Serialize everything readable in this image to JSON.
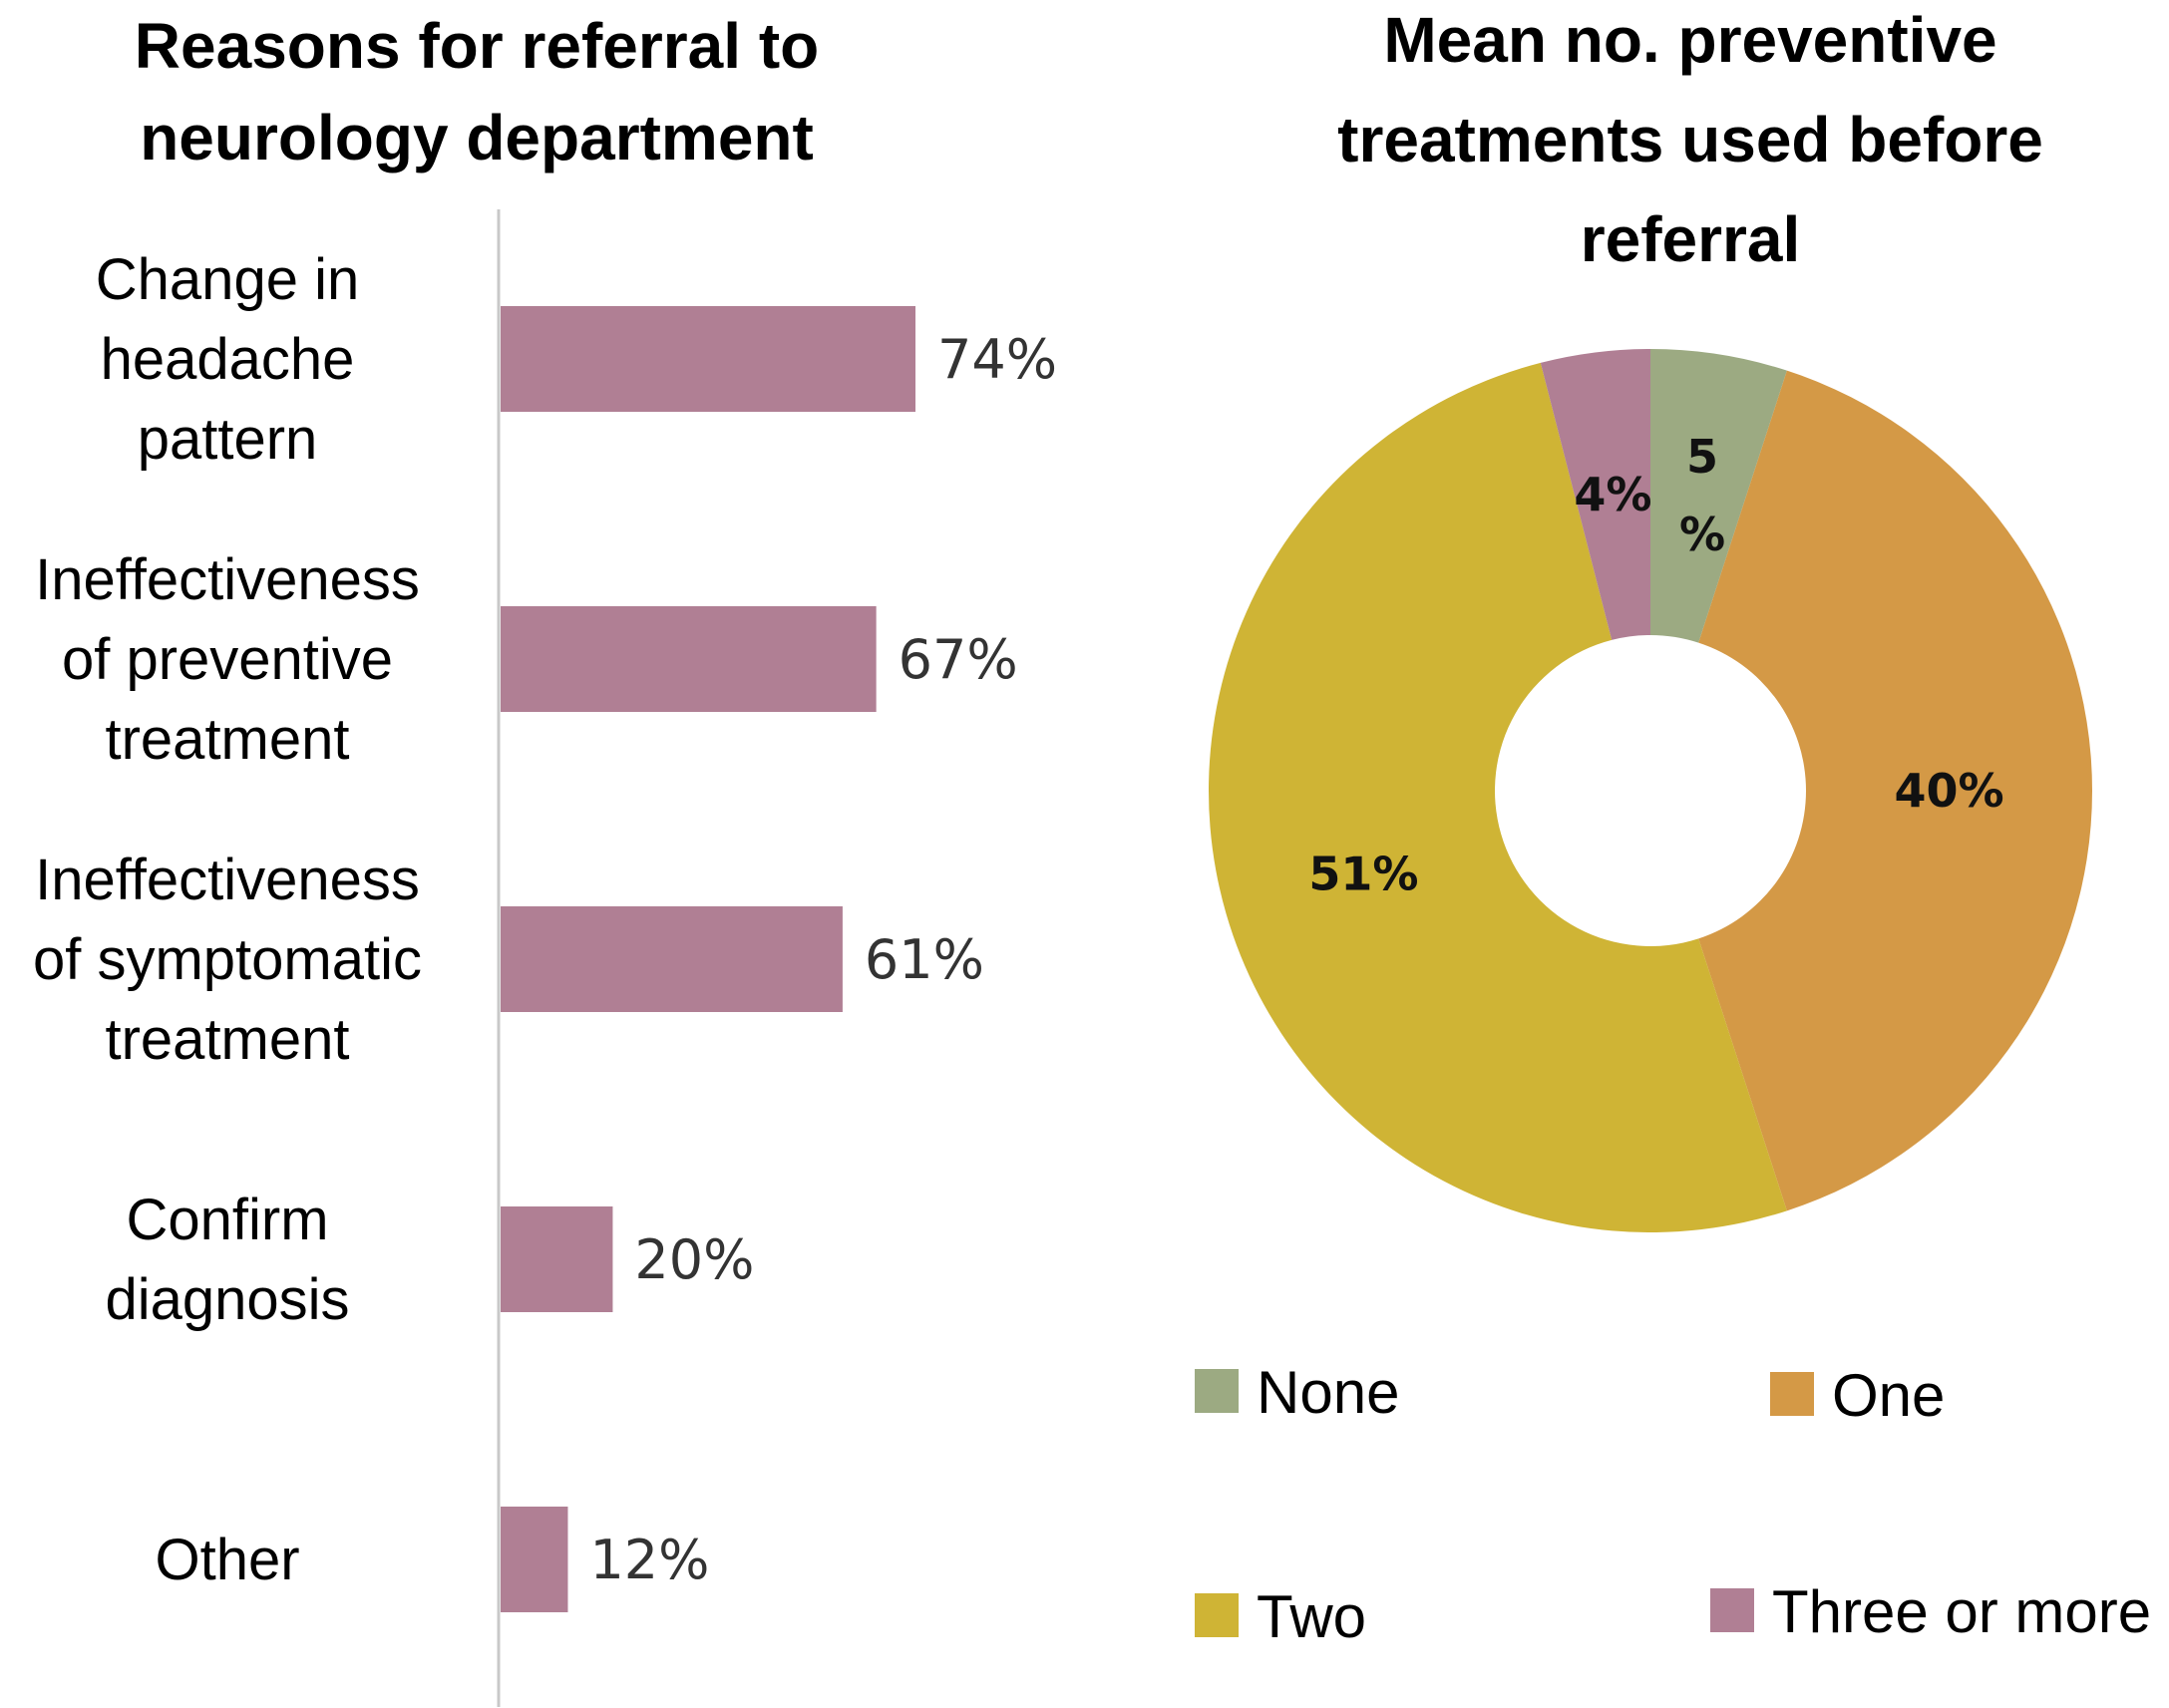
{
  "chart_data": [
    {
      "type": "bar",
      "orientation": "horizontal",
      "title": "Reasons for referral to neurology department",
      "title_lines": [
        "Reasons for referral to",
        "neurology department"
      ],
      "categories": [
        "Change in headache pattern",
        "Ineffectiveness of preventive treatment",
        "Ineffectiveness of symptomatic treatment",
        "Confirm diagnosis",
        "Other"
      ],
      "category_lines": [
        [
          "Change in",
          "headache",
          "pattern"
        ],
        [
          "Ineffectiveness",
          "of preventive",
          "treatment"
        ],
        [
          "Ineffectiveness",
          "of symptomatic",
          "treatment"
        ],
        [
          "Confirm",
          "diagnosis"
        ],
        [
          "Other"
        ]
      ],
      "values": [
        74,
        67,
        61,
        20,
        12
      ],
      "value_labels": [
        "74%",
        "67%",
        "61%",
        "20%",
        "12%"
      ],
      "unit": "%",
      "xlim": [
        0,
        100
      ],
      "bar_color": "#b07f94",
      "axis_color": "#c8c8c8",
      "grid": false
    },
    {
      "type": "pie",
      "variant": "donut",
      "title": "Mean no. preventive treatments used before referral",
      "title_lines": [
        "Mean no. preventive",
        "treatments used before",
        "referral"
      ],
      "categories": [
        "None",
        "One",
        "Two",
        "Three or more"
      ],
      "values": [
        5,
        40,
        51,
        4
      ],
      "value_labels": [
        "5%",
        "40%",
        "51%",
        "4%"
      ],
      "colors": [
        "#9caa82",
        "#d49946",
        "#cfb435",
        "#b07f94"
      ],
      "legend": {
        "position": "bottom",
        "columns": 2
      }
    }
  ]
}
